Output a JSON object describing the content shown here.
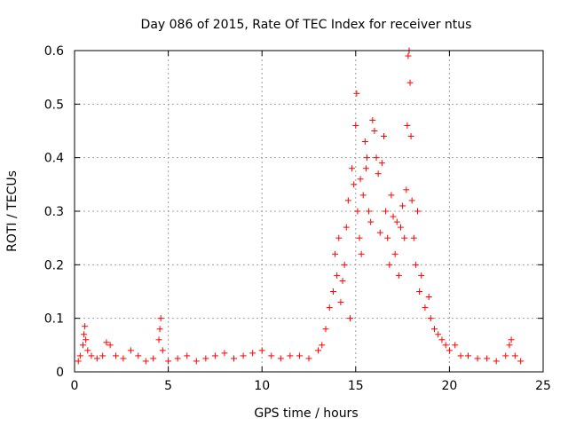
{
  "chart_data": {
    "type": "scatter",
    "title": "Day 086 of 2015, Rate Of TEC Index for receiver ntus",
    "xlabel": "GPS time / hours",
    "ylabel": "ROTI / TECUs",
    "xlim": [
      0,
      25
    ],
    "ylim": [
      0,
      0.6
    ],
    "xticks": [
      0,
      5,
      10,
      15,
      20,
      25
    ],
    "xtick_labels": [
      "0",
      "5",
      "10",
      "15",
      "20",
      "25"
    ],
    "yticks": [
      0,
      0.1,
      0.2,
      0.3,
      0.4,
      0.5,
      0.6
    ],
    "ytick_labels": [
      "0",
      "0.1",
      "0.2",
      "0.3",
      "0.4",
      "0.5",
      "0.6"
    ],
    "grid": true,
    "marker": "+",
    "series_color": "#ff0000",
    "series": [
      {
        "name": "ROTI",
        "points": [
          [
            0.2,
            0.02
          ],
          [
            0.3,
            0.03
          ],
          [
            0.45,
            0.05
          ],
          [
            0.5,
            0.07
          ],
          [
            0.55,
            0.085
          ],
          [
            0.6,
            0.06
          ],
          [
            0.7,
            0.04
          ],
          [
            0.9,
            0.03
          ],
          [
            1.2,
            0.025
          ],
          [
            1.5,
            0.03
          ],
          [
            1.7,
            0.055
          ],
          [
            1.9,
            0.05
          ],
          [
            2.2,
            0.03
          ],
          [
            2.6,
            0.025
          ],
          [
            3.0,
            0.04
          ],
          [
            3.4,
            0.03
          ],
          [
            3.8,
            0.02
          ],
          [
            4.2,
            0.025
          ],
          [
            4.5,
            0.06
          ],
          [
            4.55,
            0.08
          ],
          [
            4.6,
            0.1
          ],
          [
            4.7,
            0.04
          ],
          [
            5.0,
            0.02
          ],
          [
            5.5,
            0.025
          ],
          [
            6.0,
            0.03
          ],
          [
            6.5,
            0.02
          ],
          [
            7.0,
            0.025
          ],
          [
            7.5,
            0.03
          ],
          [
            8.0,
            0.035
          ],
          [
            8.5,
            0.025
          ],
          [
            9.0,
            0.03
          ],
          [
            9.5,
            0.035
          ],
          [
            10.0,
            0.04
          ],
          [
            10.5,
            0.03
          ],
          [
            11.0,
            0.025
          ],
          [
            11.5,
            0.03
          ],
          [
            12.0,
            0.03
          ],
          [
            12.5,
            0.025
          ],
          [
            13.0,
            0.04
          ],
          [
            13.2,
            0.05
          ],
          [
            13.4,
            0.08
          ],
          [
            13.6,
            0.12
          ],
          [
            13.8,
            0.15
          ],
          [
            13.9,
            0.22
          ],
          [
            14.0,
            0.18
          ],
          [
            14.1,
            0.25
          ],
          [
            14.2,
            0.13
          ],
          [
            14.3,
            0.17
          ],
          [
            14.4,
            0.2
          ],
          [
            14.5,
            0.27
          ],
          [
            14.6,
            0.32
          ],
          [
            14.7,
            0.1
          ],
          [
            14.8,
            0.38
          ],
          [
            14.9,
            0.35
          ],
          [
            15.0,
            0.46
          ],
          [
            15.05,
            0.52
          ],
          [
            15.1,
            0.3
          ],
          [
            15.2,
            0.25
          ],
          [
            15.25,
            0.36
          ],
          [
            15.3,
            0.22
          ],
          [
            15.4,
            0.33
          ],
          [
            15.5,
            0.43
          ],
          [
            15.55,
            0.38
          ],
          [
            15.6,
            0.4
          ],
          [
            15.7,
            0.3
          ],
          [
            15.8,
            0.28
          ],
          [
            15.9,
            0.47
          ],
          [
            16.0,
            0.45
          ],
          [
            16.1,
            0.4
          ],
          [
            16.2,
            0.37
          ],
          [
            16.3,
            0.26
          ],
          [
            16.4,
            0.39
          ],
          [
            16.5,
            0.44
          ],
          [
            16.6,
            0.3
          ],
          [
            16.7,
            0.25
          ],
          [
            16.8,
            0.2
          ],
          [
            16.9,
            0.33
          ],
          [
            17.0,
            0.29
          ],
          [
            17.1,
            0.22
          ],
          [
            17.2,
            0.28
          ],
          [
            17.3,
            0.18
          ],
          [
            17.4,
            0.27
          ],
          [
            17.5,
            0.31
          ],
          [
            17.6,
            0.25
          ],
          [
            17.7,
            0.34
          ],
          [
            17.75,
            0.46
          ],
          [
            17.8,
            0.59
          ],
          [
            17.85,
            0.6
          ],
          [
            17.9,
            0.54
          ],
          [
            17.95,
            0.44
          ],
          [
            18.0,
            0.32
          ],
          [
            18.1,
            0.25
          ],
          [
            18.2,
            0.2
          ],
          [
            18.3,
            0.3
          ],
          [
            18.4,
            0.15
          ],
          [
            18.5,
            0.18
          ],
          [
            18.7,
            0.12
          ],
          [
            18.9,
            0.14
          ],
          [
            19.0,
            0.1
          ],
          [
            19.2,
            0.08
          ],
          [
            19.4,
            0.07
          ],
          [
            19.6,
            0.06
          ],
          [
            19.8,
            0.05
          ],
          [
            20.0,
            0.04
          ],
          [
            20.3,
            0.05
          ],
          [
            20.6,
            0.03
          ],
          [
            21.0,
            0.03
          ],
          [
            21.5,
            0.025
          ],
          [
            22.0,
            0.025
          ],
          [
            22.5,
            0.02
          ],
          [
            23.0,
            0.03
          ],
          [
            23.2,
            0.05
          ],
          [
            23.3,
            0.06
          ],
          [
            23.5,
            0.03
          ],
          [
            23.8,
            0.02
          ]
        ]
      }
    ]
  }
}
